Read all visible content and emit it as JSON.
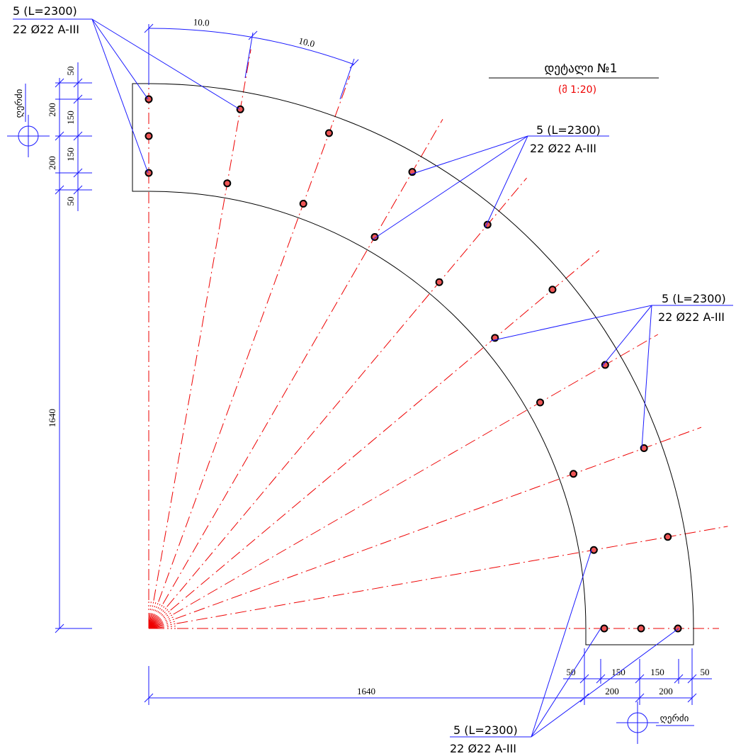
{
  "title": "დეტალი №1",
  "scale": "(მ 1:20)",
  "axis_labels": [
    "ღერძი",
    "ღერძი"
  ],
  "callouts": [
    {
      "mark": "5 (L=2300)",
      "spec": "22 Ø22 A-III"
    },
    {
      "mark": "5 (L=2300)",
      "spec": "22 Ø22 A-III"
    },
    {
      "mark": "5 (L=2300)",
      "spec": "22 Ø22 A-III"
    },
    {
      "mark": "5 (L=2300)",
      "spec": "22 Ø22 A-III"
    }
  ],
  "dimensions": {
    "arc": [
      "10.0",
      "10.0"
    ],
    "left_inner": [
      50,
      150,
      150,
      50
    ],
    "left_outer": [
      200,
      200
    ],
    "left_total": 1640,
    "bottom_inner": [
      50,
      150,
      150,
      50
    ],
    "bottom_outer": [
      200,
      200
    ],
    "bottom_total": 1640
  }
}
